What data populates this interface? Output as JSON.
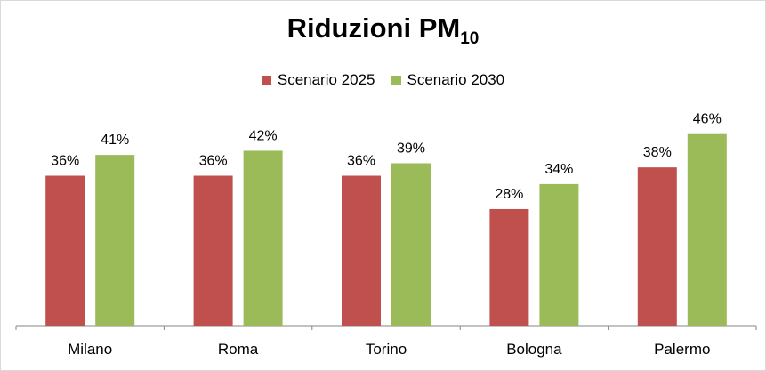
{
  "chart_data": {
    "type": "bar",
    "title": "Riduzioni PM",
    "title_subscript": "10",
    "categories": [
      "Milano",
      "Roma",
      "Torino",
      "Bologna",
      "Palermo"
    ],
    "series": [
      {
        "name": "Scenario 2025",
        "color": "#c0504d",
        "values": [
          36,
          36,
          36,
          28,
          38
        ],
        "labels": [
          "36%",
          "36%",
          "36%",
          "28%",
          "38%"
        ]
      },
      {
        "name": "Scenario 2030",
        "color": "#9bbb59",
        "values": [
          41,
          42,
          39,
          34,
          46
        ],
        "labels": [
          "41%",
          "42%",
          "39%",
          "34%",
          "46%"
        ]
      }
    ],
    "ylim": [
      0,
      50
    ],
    "grid": false,
    "legend_position": "top"
  }
}
